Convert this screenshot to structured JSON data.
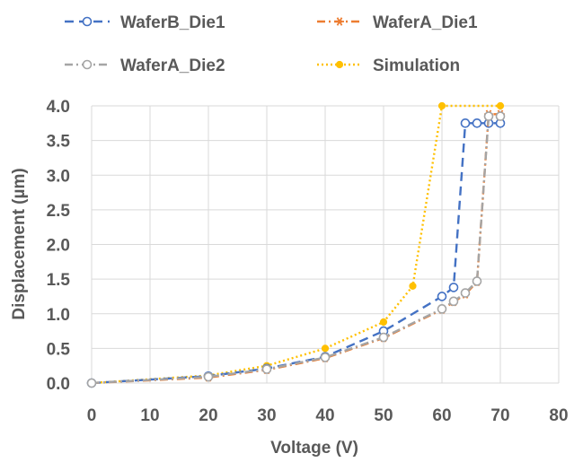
{
  "chart_data": {
    "type": "line",
    "title": "",
    "xlabel": "Voltage (V)",
    "ylabel": "Displacement (µm)",
    "xlim": [
      0,
      80
    ],
    "ylim": [
      0,
      4
    ],
    "x_ticks": [
      "0",
      "10",
      "20",
      "30",
      "40",
      "50",
      "60",
      "70",
      "80"
    ],
    "y_ticks": [
      "0.0",
      "0.5",
      "1.0",
      "1.5",
      "2.0",
      "2.5",
      "3.0",
      "3.5",
      "4.0"
    ],
    "grid": true,
    "legend_position": "top",
    "series": [
      {
        "name": "WaferB_Die1",
        "color": "#4472C4",
        "marker": "circle-open",
        "line_style": "dashed",
        "x": [
          0,
          20,
          30,
          40,
          50,
          60,
          62,
          64,
          66,
          68,
          70
        ],
        "y": [
          0,
          0.1,
          0.21,
          0.38,
          0.75,
          1.25,
          1.38,
          3.75,
          3.75,
          3.75,
          3.75
        ]
      },
      {
        "name": "WaferA_Die1",
        "color": "#ED7D31",
        "marker": "star",
        "line_style": "dash-dot",
        "x": [
          0,
          20,
          30,
          40,
          50,
          60,
          62,
          64,
          66,
          68,
          70
        ],
        "y": [
          0,
          0.08,
          0.19,
          0.36,
          0.65,
          1.06,
          1.17,
          1.28,
          1.46,
          3.88,
          3.88
        ]
      },
      {
        "name": "WaferA_Die2",
        "color": "#A5A5A5",
        "marker": "circle-open",
        "line_style": "dash-dot",
        "x": [
          0,
          20,
          30,
          40,
          50,
          60,
          62,
          64,
          66,
          68,
          70
        ],
        "y": [
          0,
          0.09,
          0.2,
          0.37,
          0.66,
          1.07,
          1.18,
          1.3,
          1.47,
          3.85,
          3.85
        ]
      },
      {
        "name": "Simulation",
        "color": "#FFC000",
        "marker": "dot",
        "line_style": "dotted",
        "x": [
          0,
          20,
          30,
          40,
          50,
          55,
          60,
          70
        ],
        "y": [
          0,
          0.11,
          0.25,
          0.5,
          0.88,
          1.4,
          4.0,
          4.0
        ]
      }
    ]
  }
}
